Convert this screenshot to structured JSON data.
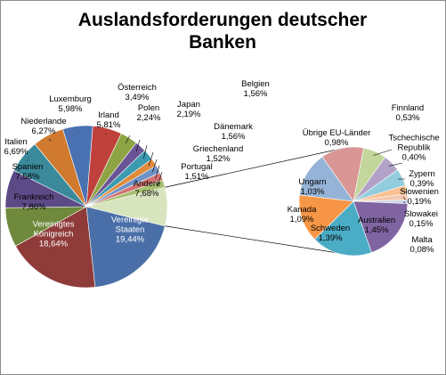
{
  "chart_data": {
    "type": "pie-of-pie",
    "title": "Auslandsforderungen deutscher Banken",
    "categories": [
      "Vereinigte Staaten",
      "Vereinigtes Königreich",
      "Frankreich",
      "Spanien",
      "Italien",
      "Niederlande",
      "Luxemburg",
      "Irland",
      "Österreich",
      "Polen",
      "Japan",
      "Belgien",
      "Dänemark",
      "Griechenland",
      "Portugal",
      "Andere"
    ],
    "values": [
      19.44,
      18.64,
      7.86,
      7.58,
      6.69,
      6.27,
      5.98,
      5.81,
      3.49,
      2.24,
      2.19,
      1.56,
      1.56,
      1.52,
      1.51,
      7.68
    ],
    "value_labels": [
      "19,44%",
      "18,64%",
      "7,86%",
      "7,58%",
      "6,69%",
      "6,27%",
      "5,98%",
      "5,81%",
      "3,49%",
      "2,24%",
      "2,19%",
      "1,56%",
      "1,56%",
      "1,52%",
      "1,51%",
      "7,68%"
    ],
    "colors": [
      "#4a6fa8",
      "#8e3b3a",
      "#6f8a3c",
      "#5c4a86",
      "#3b8a9b",
      "#cf7a2e",
      "#4a72b2",
      "#c0403c",
      "#8ea444",
      "#6a5496",
      "#3c9ab0",
      "#e08a3c",
      "#6f92c8",
      "#d07270",
      "#a8c070",
      "#d7e4bd"
    ],
    "secondary": {
      "categories": [
        "Übrige EU-Länder",
        "Finnland",
        "Tschechische Republik",
        "Zypern",
        "Slowenien",
        "Slowakei",
        "Malta",
        "Australien",
        "Schweden",
        "Kanada",
        "Ungarn"
      ],
      "values": [
        0.98,
        0.53,
        0.4,
        0.39,
        0.19,
        0.15,
        0.08,
        1.45,
        1.39,
        1.09,
        1.03
      ],
      "value_labels": [
        "0,98%",
        "0,53%",
        "0,40%",
        "0,39%",
        "0,19%",
        "0,15%",
        "0,08%",
        "1,45%",
        "1,39%",
        "1,09%",
        "1,03%"
      ],
      "colors": [
        "#d99694",
        "#c3d69b",
        "#b3a2c7",
        "#93cddd",
        "#fac090",
        "#f2c9b0",
        "#c8d4e8",
        "#8064a2",
        "#4bacc6",
        "#f79646",
        "#95b3d7"
      ]
    }
  }
}
